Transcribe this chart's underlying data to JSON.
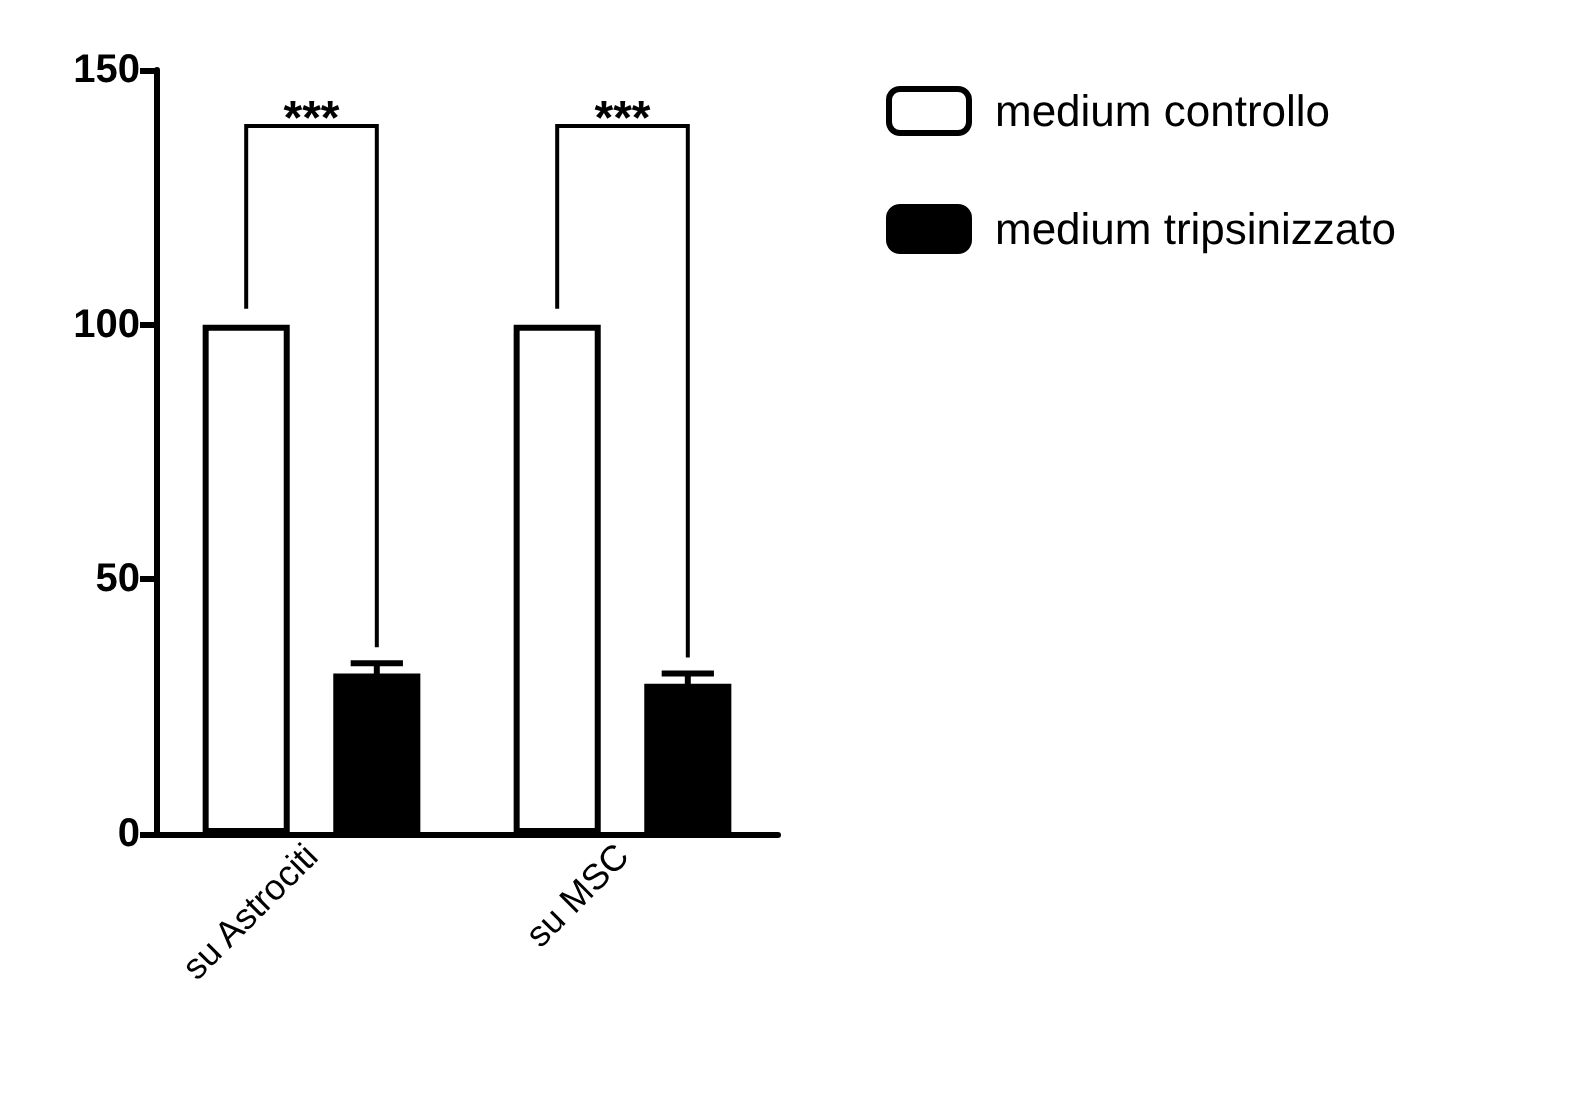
{
  "chart_data": {
    "type": "bar",
    "categories": [
      "su Astrociti",
      "su MSC"
    ],
    "series": [
      {
        "name": "medium controllo",
        "color": "#ffffff",
        "values": [
          100,
          100
        ]
      },
      {
        "name": "medium tripsinizzato",
        "color": "#000000",
        "values": [
          31.5,
          29.5
        ],
        "errors": [
          2,
          2
        ]
      }
    ],
    "ylim": [
      0,
      150
    ],
    "yticks": [
      0,
      50,
      100,
      150
    ],
    "grid": false,
    "legend": "top right",
    "annotations": [
      "***",
      "***"
    ]
  }
}
